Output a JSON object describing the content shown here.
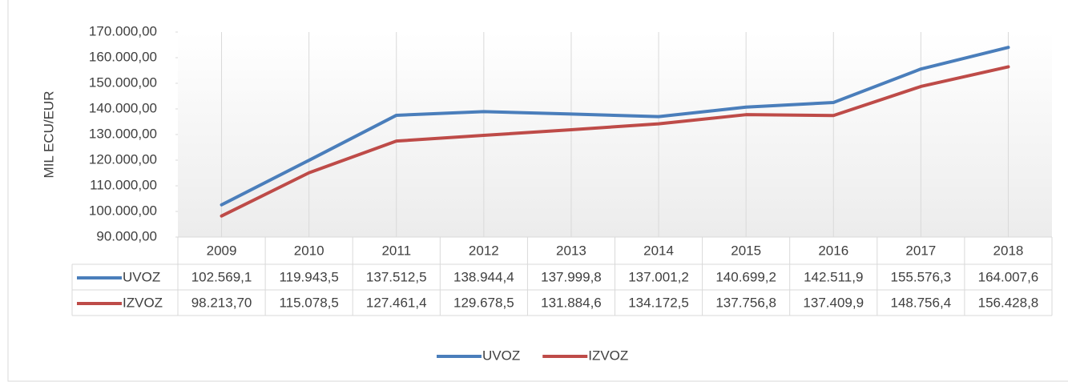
{
  "chart_data": {
    "type": "line",
    "y_label": "MIL ECU/EUR",
    "categories": [
      "2009",
      "2010",
      "2011",
      "2012",
      "2013",
      "2014",
      "2015",
      "2016",
      "2017",
      "2018"
    ],
    "series": [
      {
        "name": "UVOZ",
        "color": "#4a7ebb",
        "values": [
          102569.1,
          119943.5,
          137512.5,
          138944.4,
          137999.8,
          137001.2,
          140699.2,
          142511.9,
          155576.3,
          164007.6
        ],
        "value_labels": [
          "102.569,1",
          "119.943,5",
          "137.512,5",
          "138.944,4",
          "137.999,8",
          "137.001,2",
          "140.699,2",
          "142.511,9",
          "155.576,3",
          "164.007,6"
        ]
      },
      {
        "name": "IZVOZ",
        "color": "#be4b48",
        "values": [
          98213.7,
          115078.5,
          127461.4,
          129678.5,
          131884.6,
          134172.5,
          137756.8,
          137409.9,
          148756.4,
          156428.8
        ],
        "value_labels": [
          "98.213,70",
          "115.078,5",
          "127.461,4",
          "129.678,5",
          "131.884,6",
          "134.172,5",
          "137.756,8",
          "137.409,9",
          "148.756,4",
          "156.428,8"
        ]
      }
    ],
    "ylim": [
      90000,
      170000
    ],
    "yticks": [
      {
        "value": 90000,
        "label": "90.000,00"
      },
      {
        "value": 100000,
        "label": "100.000,00"
      },
      {
        "value": 110000,
        "label": "110.000,00"
      },
      {
        "value": 120000,
        "label": "120.000,00"
      },
      {
        "value": 130000,
        "label": "130.000,00"
      },
      {
        "value": 140000,
        "label": "140.000,00"
      },
      {
        "value": 150000,
        "label": "150.000,00"
      },
      {
        "value": 160000,
        "label": "160.000,00"
      },
      {
        "value": 170000,
        "label": "170.000,00"
      }
    ],
    "grid": "x",
    "legend": "bottom"
  }
}
